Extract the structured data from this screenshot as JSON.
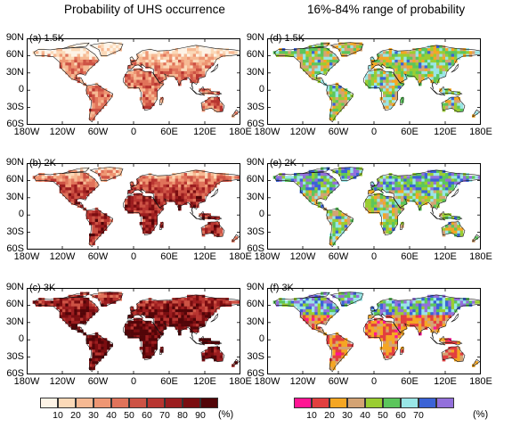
{
  "titles": {
    "left": "Probability of UHS occurrence",
    "right": "16%-84% range of probability"
  },
  "panels": [
    {
      "label": "(a) 1.5K",
      "col": 0,
      "row": 0,
      "scheme": "prob",
      "level": 0
    },
    {
      "label": "(d) 1.5K",
      "col": 1,
      "row": 0,
      "scheme": "range",
      "level": 0
    },
    {
      "label": "(b) 2K",
      "col": 0,
      "row": 1,
      "scheme": "prob",
      "level": 1
    },
    {
      "label": "(e) 2K",
      "col": 1,
      "row": 1,
      "scheme": "range",
      "level": 1
    },
    {
      "label": "(c) 3K",
      "col": 0,
      "row": 2,
      "scheme": "prob",
      "level": 2
    },
    {
      "label": "(f) 3K",
      "col": 1,
      "row": 2,
      "scheme": "range",
      "level": 2
    }
  ],
  "axes": {
    "lat_ticks": [
      "90N",
      "60N",
      "30N",
      "0",
      "30S",
      "60S"
    ],
    "lon_ticks": [
      "180W",
      "120W",
      "60W",
      "0",
      "60E",
      "120E",
      "180E"
    ]
  },
  "colorbars": {
    "prob": {
      "colors": [
        "#fdf3e6",
        "#fbd9b8",
        "#f6b993",
        "#ee9673",
        "#e0735a",
        "#cd5244",
        "#b83530",
        "#9b1d1f",
        "#7a0d10",
        "#520508"
      ],
      "labels": [
        "10",
        "20",
        "30",
        "40",
        "50",
        "60",
        "70",
        "80",
        "90"
      ],
      "unit": "(%)"
    },
    "range": {
      "colors": [
        "#ff1493",
        "#e23f3f",
        "#f5a623",
        "#d4a373",
        "#9acd32",
        "#5cc65c",
        "#99e6e6",
        "#3b63d6",
        "#9370db"
      ],
      "labels": [
        "10",
        "20",
        "30",
        "40",
        "50",
        "60",
        "70"
      ],
      "unit": "(%)"
    }
  }
}
